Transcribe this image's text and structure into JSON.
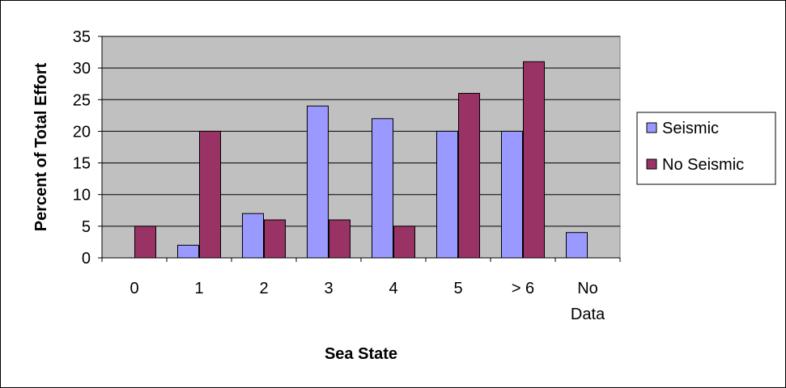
{
  "chart_data": {
    "type": "bar",
    "title": "",
    "xlabel": "Sea State",
    "ylabel": "Percent of Total Effort",
    "ylim": [
      0,
      35
    ],
    "yticks": [
      0,
      5,
      10,
      15,
      20,
      25,
      30,
      35
    ],
    "grid": true,
    "legend_position": "right",
    "categories": [
      [
        "0"
      ],
      [
        "1"
      ],
      [
        "2"
      ],
      [
        "3"
      ],
      [
        "4"
      ],
      [
        "5"
      ],
      [
        "> 6"
      ],
      [
        "No",
        "Data"
      ]
    ],
    "series": [
      {
        "name": "Seismic",
        "color": "#9999ff",
        "values": [
          null,
          2,
          7,
          24,
          22,
          20,
          20,
          4
        ]
      },
      {
        "name": "No Seismic",
        "color": "#993366",
        "values": [
          5,
          20,
          6,
          6,
          5,
          26,
          31,
          null
        ]
      }
    ],
    "plot_background": "#c0c0c0"
  }
}
